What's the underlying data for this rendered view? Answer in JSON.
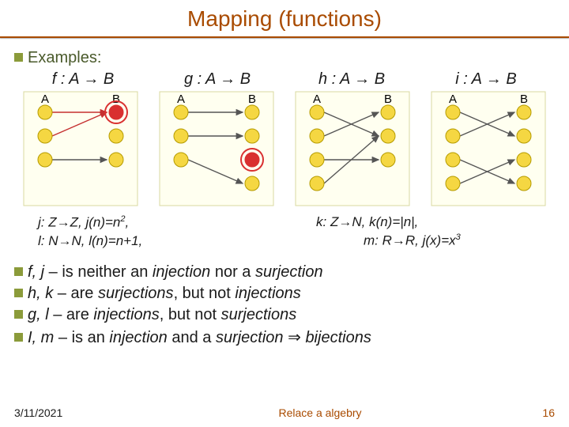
{
  "title": "Mapping (functions)",
  "examples_label": "Examples:",
  "maps": {
    "f": "f : A → B",
    "g": "g : A → B",
    "h": "h : A → B",
    "i": "i : A → B"
  },
  "set_labels": {
    "A": "A",
    "B": "B"
  },
  "diagrams": {
    "node_fill": "#f5d742",
    "node_stroke": "#b59b00",
    "highlight_fill": "#d93030",
    "highlight_ring": "#d93030",
    "arrow_color": "#555555",
    "arrow_red": "#c53030",
    "bg": "#fffff0",
    "border": "#d8d8a0",
    "f": {
      "left_nodes": 3,
      "right_nodes": 3,
      "arrows": [
        {
          "from": 0,
          "to": 0,
          "color": "red",
          "curve": 0
        },
        {
          "from": 1,
          "to": 0,
          "color": "red",
          "curve": 0
        },
        {
          "from": 2,
          "to": 2,
          "color": "normal",
          "curve": 0
        }
      ],
      "highlight_right_index": 0
    },
    "g": {
      "left_nodes": 3,
      "right_nodes": 4,
      "arrows": [
        {
          "from": 0,
          "to": 0,
          "color": "normal",
          "curve": 0
        },
        {
          "from": 1,
          "to": 1,
          "color": "normal",
          "curve": 0
        },
        {
          "from": 2,
          "to": 3,
          "color": "normal",
          "curve": 0
        }
      ],
      "highlight_right_index": 2
    },
    "h": {
      "left_nodes": 4,
      "right_nodes": 3,
      "arrows": [
        {
          "from": 0,
          "to": 1,
          "color": "normal",
          "curve": 0
        },
        {
          "from": 1,
          "to": 0,
          "color": "normal",
          "curve": 0
        },
        {
          "from": 2,
          "to": 2,
          "color": "normal",
          "curve": 0
        },
        {
          "from": 3,
          "to": 1,
          "color": "normal",
          "curve": 0
        }
      ]
    },
    "i": {
      "left_nodes": 4,
      "right_nodes": 4,
      "arrows": [
        {
          "from": 0,
          "to": 1,
          "color": "normal",
          "curve": 0
        },
        {
          "from": 1,
          "to": 0,
          "color": "normal",
          "curve": 0
        },
        {
          "from": 2,
          "to": 3,
          "color": "normal",
          "curve": 0
        },
        {
          "from": 3,
          "to": 2,
          "color": "normal",
          "curve": 0
        }
      ]
    }
  },
  "formulas": {
    "j": "j: Z→Z, j(n)=n²,",
    "l": "l: N→N, l(n)=n+1,",
    "k": "k: Z→N, k(n)=|n|,",
    "m": "m: R→R, j(x)=x³"
  },
  "bullets": {
    "b1_head": "f, j",
    "b1_rest": " – is neither an ",
    "b1_em1": "injection",
    "b1_mid": " nor a ",
    "b1_em2": "surjection",
    "b2_head": "h, k",
    "b2_rest": " – are ",
    "b2_em1": "surjections",
    "b2_mid": ", but not ",
    "b2_em2": "injections",
    "b3_head": "g, l",
    "b3_rest": " – are ",
    "b3_em1": "injections",
    "b3_mid": ", but not ",
    "b3_em2": "surjections",
    "b4_head": "I, m",
    "b4_rest": " – is an ",
    "b4_em1": "injection",
    "b4_mid": " and a ",
    "b4_em2": "surjection",
    "b4_imply": " ⇒ ",
    "b4_em3": "bijections"
  },
  "footer": {
    "date": "3/11/2021",
    "center": "Relace a algebry",
    "page": "16"
  }
}
